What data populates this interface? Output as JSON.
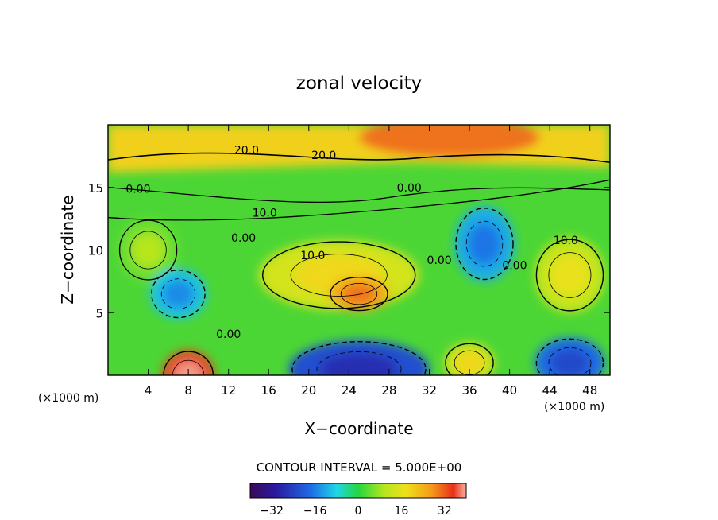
{
  "chart_data": {
    "type": "heatmap",
    "title": "zonal velocity",
    "xlabel": "X−coordinate",
    "ylabel": "Z−coordinate",
    "xlim": [
      0,
      50
    ],
    "ylim": [
      0,
      20
    ],
    "x_ticks": [
      4,
      8,
      12,
      16,
      20,
      24,
      28,
      32,
      36,
      40,
      44,
      48
    ],
    "x_tick_labels": [
      "4",
      "8",
      "12",
      "16",
      "20",
      "24",
      "28",
      "32",
      "36",
      "40",
      "44",
      "48"
    ],
    "y_ticks": [
      5,
      10,
      15
    ],
    "y_tick_labels": [
      "5",
      "10",
      "15"
    ],
    "x_unit_left": "(×1000 m)",
    "x_unit_right": "(×1000 m)",
    "contour_interval_text": "CONTOUR INTERVAL = 5.000E+00",
    "contour_interval": 5.0,
    "colorbar": {
      "range": [
        -40,
        40
      ],
      "ticks": [
        -32,
        -16,
        0,
        16,
        32
      ],
      "tick_labels": [
        "−32",
        "−16",
        "0",
        "16",
        "32"
      ]
    },
    "contour_labels": [
      {
        "text": "20.0",
        "x": 13.8,
        "z": 18.0
      },
      {
        "text": "20.0",
        "x": 21.5,
        "z": 17.6
      },
      {
        "text": "0.00",
        "x": 3.0,
        "z": 14.9
      },
      {
        "text": "0.00",
        "x": 30.0,
        "z": 15.0
      },
      {
        "text": "10.0",
        "x": 15.6,
        "z": 13.0
      },
      {
        "text": "0.00",
        "x": 13.5,
        "z": 11.0
      },
      {
        "text": "10.0",
        "x": 20.4,
        "z": 9.6
      },
      {
        "text": "10.0",
        "x": 45.6,
        "z": 10.8
      },
      {
        "text": "0.00",
        "x": 33.0,
        "z": 9.2
      },
      {
        "text": "0.00",
        "x": 40.5,
        "z": 8.8
      },
      {
        "text": "0.00",
        "x": 12.0,
        "z": 3.3
      }
    ],
    "field_features": [
      {
        "x": 25.0,
        "z": 6.5,
        "value": 25,
        "width": 3.0,
        "height": 1.4
      },
      {
        "x": 23.0,
        "z": 8.0,
        "value": 14,
        "width": 8.0,
        "height": 2.8
      },
      {
        "x": 46.0,
        "z": 8.0,
        "value": 12,
        "width": 3.5,
        "height": 3.0
      },
      {
        "x": 8.0,
        "z": 0.0,
        "value": 34,
        "width": 2.6,
        "height": 2.0
      },
      {
        "x": 36.0,
        "z": 1.0,
        "value": 14,
        "width": 2.5,
        "height": 1.6
      },
      {
        "x": 25.0,
        "z": 0.5,
        "value": -22,
        "width": 7.0,
        "height": 2.3
      },
      {
        "x": 46.0,
        "z": 1.0,
        "value": -18,
        "width": 3.5,
        "height": 2.0
      },
      {
        "x": 37.5,
        "z": 10.5,
        "value": -12,
        "width": 3.0,
        "height": 3.0
      },
      {
        "x": 7.0,
        "z": 6.5,
        "value": -10,
        "width": 2.8,
        "height": 2.0
      },
      {
        "x": 4.0,
        "z": 10.0,
        "value": 5,
        "width": 3.0,
        "height": 2.5
      }
    ],
    "upper_layer": {
      "boundary_z_left": 16.2,
      "boundary_z_right": 16.6,
      "value": 20,
      "peak": {
        "x": 34.0,
        "z": 19.0,
        "value": 30
      }
    }
  },
  "colors": {
    "text": "#000000",
    "axis": "#000000",
    "background": "#ffffff"
  }
}
